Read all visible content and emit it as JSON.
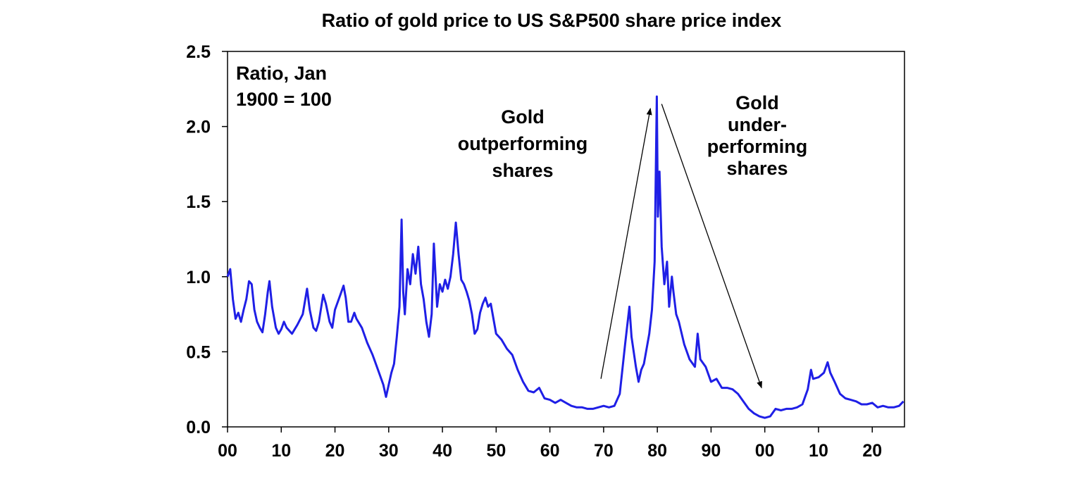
{
  "chart_data": {
    "type": "line",
    "title": "Ratio of gold price to US S&P500 share price index",
    "xlabel": "",
    "ylabel": "",
    "ylim": [
      0,
      2.5
    ],
    "y_ticks": [
      "0.0",
      "0.5",
      "1.0",
      "1.5",
      "2.0",
      "2.5"
    ],
    "x_range": [
      1900,
      2026
    ],
    "x_tick_labels": [
      {
        "year": 1900,
        "label": "00"
      },
      {
        "year": 1910,
        "label": "10"
      },
      {
        "year": 1920,
        "label": "20"
      },
      {
        "year": 1930,
        "label": "30"
      },
      {
        "year": 1940,
        "label": "40"
      },
      {
        "year": 1950,
        "label": "50"
      },
      {
        "year": 1960,
        "label": "60"
      },
      {
        "year": 1970,
        "label": "70"
      },
      {
        "year": 1980,
        "label": "80"
      },
      {
        "year": 1990,
        "label": "90"
      },
      {
        "year": 2000,
        "label": "00"
      },
      {
        "year": 2010,
        "label": "10"
      },
      {
        "year": 2020,
        "label": "20"
      }
    ],
    "grid": false,
    "line_color": "#1f1fe6",
    "annotations": {
      "units_note": [
        "Ratio, Jan",
        "1900  = 100"
      ],
      "outperform": [
        "Gold",
        "outperforming",
        "shares"
      ],
      "underperform": [
        "Gold",
        "under-",
        "performing",
        "shares"
      ]
    },
    "arrows": [
      {
        "from": [
          1969.5,
          0.32
        ],
        "to": [
          1978.7,
          2.12
        ]
      },
      {
        "from": [
          1980.8,
          2.15
        ],
        "to": [
          1999.4,
          0.26
        ]
      }
    ],
    "series": [
      {
        "values": [
          [
            1900.0,
            1.0
          ],
          [
            1900.5,
            1.05
          ],
          [
            1901.0,
            0.85
          ],
          [
            1901.5,
            0.72
          ],
          [
            1902.0,
            0.76
          ],
          [
            1902.5,
            0.7
          ],
          [
            1903.0,
            0.78
          ],
          [
            1903.5,
            0.85
          ],
          [
            1904.0,
            0.97
          ],
          [
            1904.5,
            0.95
          ],
          [
            1905.0,
            0.78
          ],
          [
            1905.5,
            0.7
          ],
          [
            1906.0,
            0.66
          ],
          [
            1906.5,
            0.63
          ],
          [
            1907.0,
            0.75
          ],
          [
            1907.5,
            0.9
          ],
          [
            1907.8,
            0.97
          ],
          [
            1908.3,
            0.8
          ],
          [
            1909.0,
            0.66
          ],
          [
            1909.5,
            0.62
          ],
          [
            1910.0,
            0.65
          ],
          [
            1910.5,
            0.7
          ],
          [
            1911.0,
            0.66
          ],
          [
            1912.0,
            0.62
          ],
          [
            1913.0,
            0.68
          ],
          [
            1914.0,
            0.75
          ],
          [
            1914.8,
            0.92
          ],
          [
            1915.3,
            0.78
          ],
          [
            1916.0,
            0.66
          ],
          [
            1916.5,
            0.64
          ],
          [
            1917.0,
            0.7
          ],
          [
            1917.8,
            0.88
          ],
          [
            1918.3,
            0.82
          ],
          [
            1919.0,
            0.7
          ],
          [
            1919.5,
            0.66
          ],
          [
            1920.0,
            0.78
          ],
          [
            1921.0,
            0.88
          ],
          [
            1921.6,
            0.94
          ],
          [
            1922.0,
            0.86
          ],
          [
            1922.5,
            0.7
          ],
          [
            1923.0,
            0.7
          ],
          [
            1923.6,
            0.76
          ],
          [
            1924.0,
            0.72
          ],
          [
            1925.0,
            0.66
          ],
          [
            1926.0,
            0.56
          ],
          [
            1927.0,
            0.48
          ],
          [
            1928.0,
            0.38
          ],
          [
            1929.0,
            0.28
          ],
          [
            1929.5,
            0.2
          ],
          [
            1930.0,
            0.28
          ],
          [
            1930.5,
            0.36
          ],
          [
            1931.0,
            0.42
          ],
          [
            1931.5,
            0.6
          ],
          [
            1932.0,
            0.8
          ],
          [
            1932.4,
            1.38
          ],
          [
            1932.7,
            0.9
          ],
          [
            1933.0,
            0.75
          ],
          [
            1933.5,
            1.05
          ],
          [
            1934.0,
            0.95
          ],
          [
            1934.5,
            1.15
          ],
          [
            1935.0,
            1.02
          ],
          [
            1935.5,
            1.2
          ],
          [
            1936.0,
            0.95
          ],
          [
            1936.5,
            0.85
          ],
          [
            1937.0,
            0.7
          ],
          [
            1937.5,
            0.6
          ],
          [
            1938.0,
            0.75
          ],
          [
            1938.4,
            1.22
          ],
          [
            1938.8,
            0.95
          ],
          [
            1939.0,
            0.8
          ],
          [
            1939.5,
            0.95
          ],
          [
            1940.0,
            0.9
          ],
          [
            1940.5,
            0.98
          ],
          [
            1941.0,
            0.92
          ],
          [
            1941.5,
            1.0
          ],
          [
            1942.0,
            1.15
          ],
          [
            1942.5,
            1.36
          ],
          [
            1943.0,
            1.15
          ],
          [
            1943.5,
            0.98
          ],
          [
            1944.0,
            0.95
          ],
          [
            1944.5,
            0.9
          ],
          [
            1945.0,
            0.84
          ],
          [
            1945.5,
            0.75
          ],
          [
            1946.0,
            0.62
          ],
          [
            1946.5,
            0.65
          ],
          [
            1947.0,
            0.76
          ],
          [
            1947.5,
            0.82
          ],
          [
            1948.0,
            0.86
          ],
          [
            1948.5,
            0.8
          ],
          [
            1949.0,
            0.82
          ],
          [
            1950.0,
            0.62
          ],
          [
            1951.0,
            0.58
          ],
          [
            1952.0,
            0.52
          ],
          [
            1953.0,
            0.48
          ],
          [
            1954.0,
            0.38
          ],
          [
            1955.0,
            0.3
          ],
          [
            1956.0,
            0.24
          ],
          [
            1957.0,
            0.23
          ],
          [
            1958.0,
            0.26
          ],
          [
            1959.0,
            0.19
          ],
          [
            1960.0,
            0.18
          ],
          [
            1961.0,
            0.16
          ],
          [
            1962.0,
            0.18
          ],
          [
            1963.0,
            0.16
          ],
          [
            1964.0,
            0.14
          ],
          [
            1965.0,
            0.13
          ],
          [
            1966.0,
            0.13
          ],
          [
            1967.0,
            0.12
          ],
          [
            1968.0,
            0.12
          ],
          [
            1969.0,
            0.13
          ],
          [
            1970.0,
            0.14
          ],
          [
            1971.0,
            0.13
          ],
          [
            1972.0,
            0.14
          ],
          [
            1973.0,
            0.22
          ],
          [
            1974.0,
            0.55
          ],
          [
            1974.8,
            0.8
          ],
          [
            1975.2,
            0.6
          ],
          [
            1976.0,
            0.4
          ],
          [
            1976.5,
            0.3
          ],
          [
            1977.0,
            0.38
          ],
          [
            1977.5,
            0.42
          ],
          [
            1978.0,
            0.52
          ],
          [
            1978.5,
            0.62
          ],
          [
            1979.0,
            0.78
          ],
          [
            1979.5,
            1.1
          ],
          [
            1979.9,
            2.2
          ],
          [
            1980.1,
            1.4
          ],
          [
            1980.4,
            1.7
          ],
          [
            1980.8,
            1.2
          ],
          [
            1981.3,
            0.95
          ],
          [
            1981.8,
            1.1
          ],
          [
            1982.2,
            0.8
          ],
          [
            1982.7,
            1.0
          ],
          [
            1983.0,
            0.9
          ],
          [
            1983.5,
            0.75
          ],
          [
            1984.0,
            0.7
          ],
          [
            1985.0,
            0.55
          ],
          [
            1986.0,
            0.45
          ],
          [
            1987.0,
            0.4
          ],
          [
            1987.5,
            0.62
          ],
          [
            1988.0,
            0.45
          ],
          [
            1989.0,
            0.4
          ],
          [
            1990.0,
            0.3
          ],
          [
            1991.0,
            0.32
          ],
          [
            1992.0,
            0.26
          ],
          [
            1993.0,
            0.26
          ],
          [
            1994.0,
            0.25
          ],
          [
            1995.0,
            0.22
          ],
          [
            1996.0,
            0.17
          ],
          [
            1997.0,
            0.12
          ],
          [
            1998.0,
            0.09
          ],
          [
            1999.0,
            0.07
          ],
          [
            2000.0,
            0.06
          ],
          [
            2001.0,
            0.07
          ],
          [
            2002.0,
            0.12
          ],
          [
            2003.0,
            0.11
          ],
          [
            2004.0,
            0.12
          ],
          [
            2005.0,
            0.12
          ],
          [
            2006.0,
            0.13
          ],
          [
            2007.0,
            0.15
          ],
          [
            2008.0,
            0.25
          ],
          [
            2008.6,
            0.38
          ],
          [
            2009.0,
            0.32
          ],
          [
            2010.0,
            0.33
          ],
          [
            2011.0,
            0.36
          ],
          [
            2011.7,
            0.43
          ],
          [
            2012.2,
            0.36
          ],
          [
            2013.0,
            0.3
          ],
          [
            2014.0,
            0.22
          ],
          [
            2015.0,
            0.19
          ],
          [
            2016.0,
            0.18
          ],
          [
            2017.0,
            0.17
          ],
          [
            2018.0,
            0.15
          ],
          [
            2019.0,
            0.15
          ],
          [
            2020.0,
            0.16
          ],
          [
            2021.0,
            0.13
          ],
          [
            2022.0,
            0.14
          ],
          [
            2023.0,
            0.13
          ],
          [
            2024.0,
            0.13
          ],
          [
            2025.0,
            0.14
          ],
          [
            2025.8,
            0.17
          ]
        ]
      }
    ]
  }
}
